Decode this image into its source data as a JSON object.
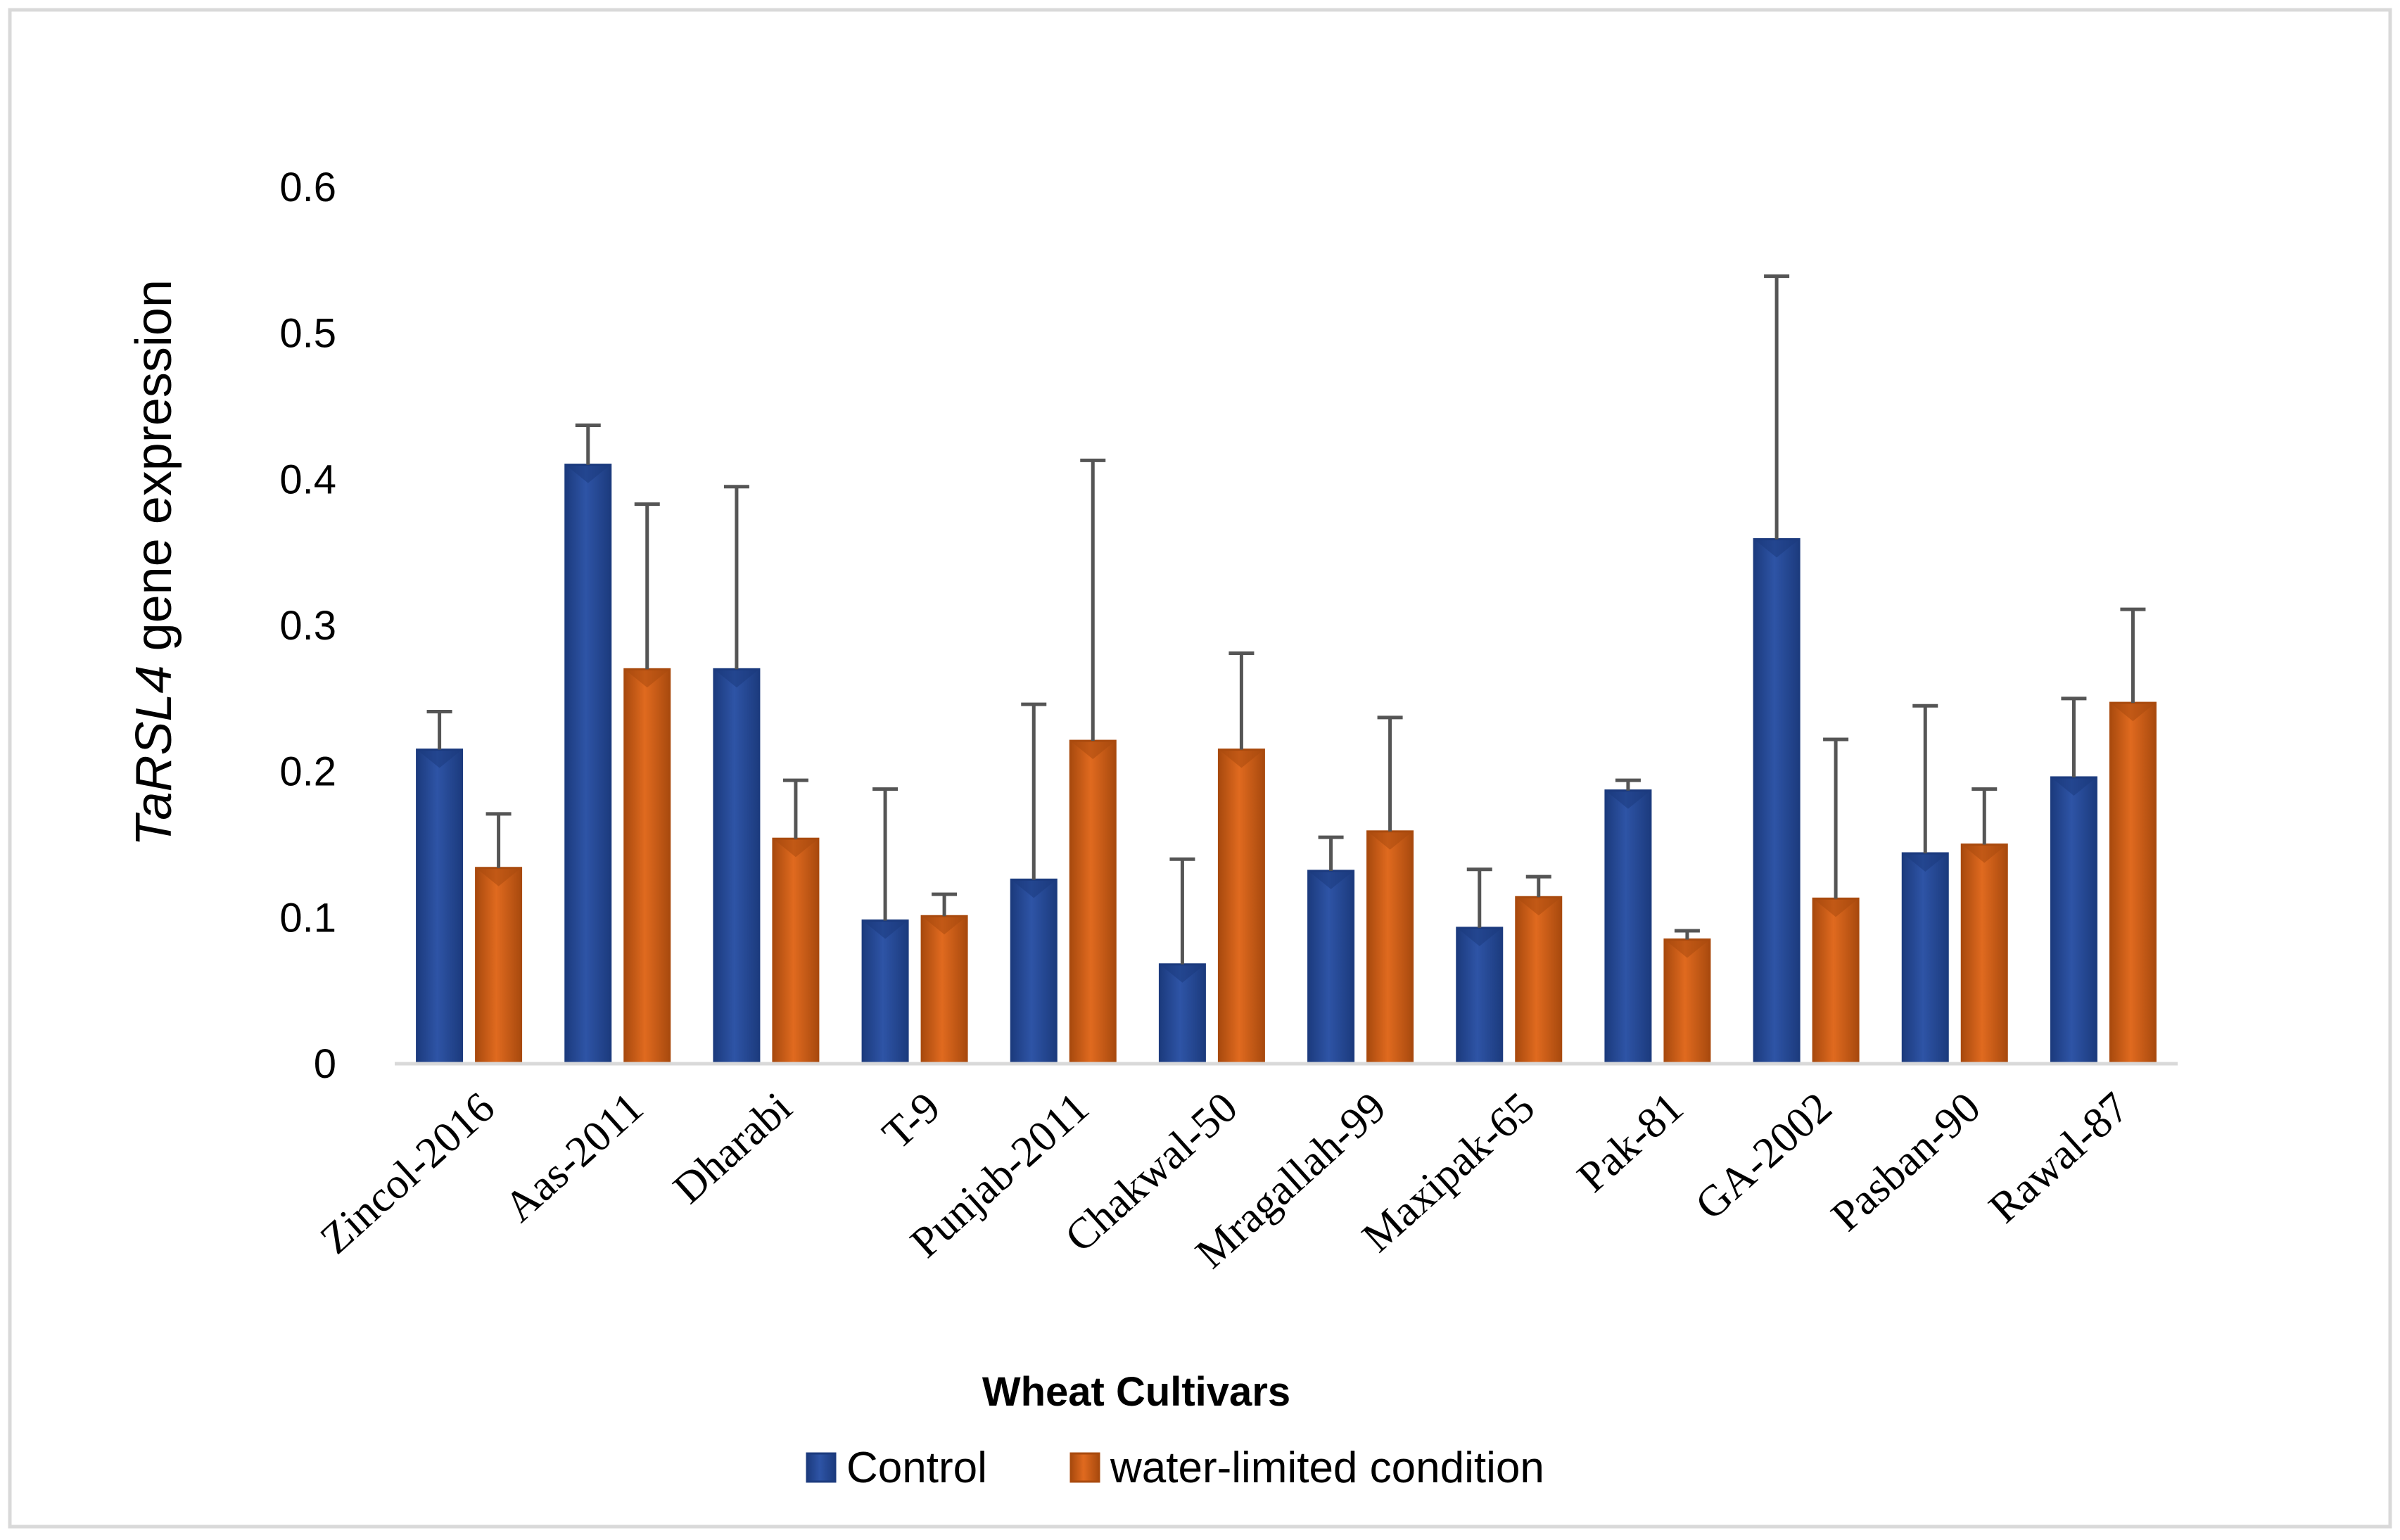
{
  "colors": {
    "control": "#2E54A6",
    "control_dark": "#1C3B7E",
    "water_limited": "#E06A1F",
    "water_limited_dark": "#A94A0E",
    "error_bar": "#555555",
    "axis": "#D9D9D9",
    "frame": "#D9D9D9"
  },
  "chart_data": {
    "type": "bar",
    "xlabel": "Wheat Cultivars",
    "ylabel_italic": "TaRSL4",
    "ylabel_rest": " gene expression",
    "ylim": [
      0,
      0.6
    ],
    "yticks": [
      "0",
      "0.1",
      "0.2",
      "0.3",
      "0.4",
      "0.5",
      "0.6"
    ],
    "grid": false,
    "legend_position": "bottom",
    "categories": [
      "Zincol-2016",
      "Aas-2011",
      "Dharabi",
      "T-9",
      "Punjab-2011",
      "Chakwal-50",
      "Mragallah-99",
      "Maxipak-65",
      "Pak-81",
      "GA-2002",
      "Pasban-90",
      "Rawal-87"
    ],
    "series": [
      {
        "name": "Control",
        "values": [
          0.215,
          0.41,
          0.27,
          0.098,
          0.126,
          0.068,
          0.132,
          0.093,
          0.187,
          0.359,
          0.144,
          0.196
        ],
        "error_upper": [
          0.241,
          0.437,
          0.395,
          0.188,
          0.246,
          0.14,
          0.155,
          0.133,
          0.194,
          0.539,
          0.245,
          0.25
        ]
      },
      {
        "name": "water-limited condition",
        "values": [
          0.134,
          0.27,
          0.154,
          0.101,
          0.221,
          0.215,
          0.159,
          0.114,
          0.085,
          0.113,
          0.15,
          0.247
        ],
        "error_upper": [
          0.171,
          0.383,
          0.194,
          0.116,
          0.413,
          0.281,
          0.237,
          0.128,
          0.091,
          0.222,
          0.188,
          0.311
        ]
      }
    ]
  }
}
